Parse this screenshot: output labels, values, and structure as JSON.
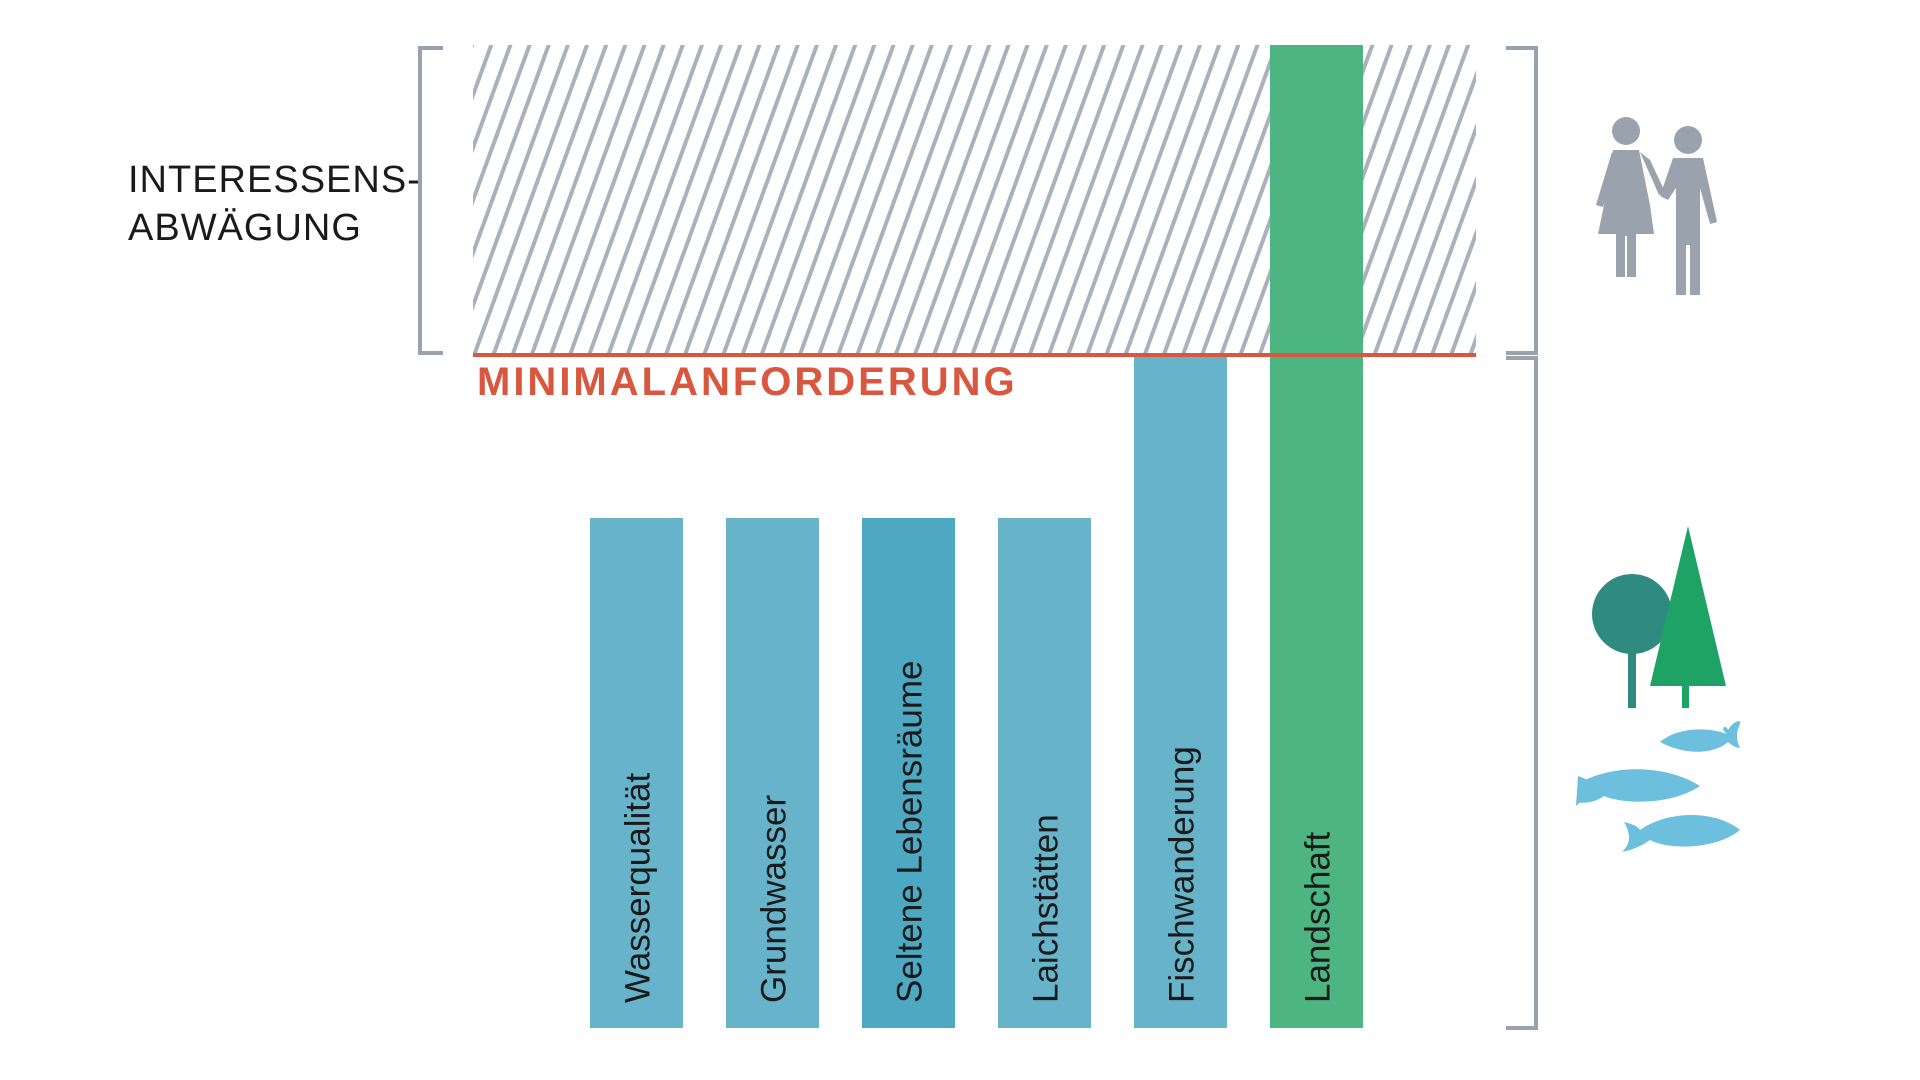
{
  "left_label": {
    "line1": "INTERESSENS-",
    "line2": "ABWÄGUNG"
  },
  "threshold_label": "MINIMALANFORDERUNG",
  "bars": [
    {
      "label": "Wasserqualität",
      "level": "below-threshold",
      "color": "#67b3c9"
    },
    {
      "label": "Grundwasser",
      "level": "below-threshold",
      "color": "#67b3c9"
    },
    {
      "label": "Seltene Lebensräume",
      "level": "below-threshold",
      "color": "#4da8c1"
    },
    {
      "label": "Laichstätten",
      "level": "below-threshold",
      "color": "#67b3c9"
    },
    {
      "label": "Fischwanderung",
      "level": "at-threshold",
      "color": "#67b3c9"
    },
    {
      "label": "Landschaft",
      "level": "above-threshold",
      "color": "#4db581"
    }
  ],
  "colors": {
    "threshold": "#d9573e",
    "hatch": "#a9b1bb",
    "bracket": "#9aa3ad",
    "people": "#9aa3ad",
    "tree_round": "#2f8b7f",
    "tree_conifer": "#1fa266",
    "fish": "#6cc0dd"
  },
  "icons": {
    "people": "people-icon",
    "trees": "trees-icon",
    "fish": "fish-icon"
  }
}
